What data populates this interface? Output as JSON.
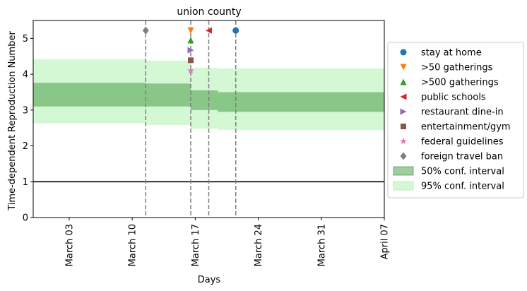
{
  "chart_data": {
    "type": "line",
    "title": "union county",
    "xlabel": "Days",
    "ylabel": "Time-dependent Reproduction Number",
    "x_range": [
      "2020-02-28",
      "2020-04-07"
    ],
    "ylim": [
      0,
      5.5
    ],
    "x_ticks": [
      {
        "date": "2020-03-03",
        "label": "March 03"
      },
      {
        "date": "2020-03-10",
        "label": "March 10"
      },
      {
        "date": "2020-03-17",
        "label": "March 17"
      },
      {
        "date": "2020-03-24",
        "label": "March 24"
      },
      {
        "date": "2020-03-31",
        "label": "March 31"
      },
      {
        "date": "2020-04-07",
        "label": "April 07"
      }
    ],
    "y_ticks": [
      0,
      1,
      2,
      3,
      4,
      5
    ],
    "grid": false,
    "reference_line": {
      "y": 1,
      "color": "#000000"
    },
    "bands": [
      {
        "name": "95% conf. interval",
        "color": "#90ee90",
        "segments": [
          {
            "x_start": "2020-02-28",
            "x_end": "2020-03-11.5",
            "low": 2.63,
            "high": 4.42
          },
          {
            "x_start": "2020-03-11.5",
            "x_end": "2020-03-16.5",
            "low": 2.58,
            "high": 4.38
          },
          {
            "x_start": "2020-03-16.5",
            "x_end": "2020-03-19.5",
            "low": 2.48,
            "high": 4.18
          },
          {
            "x_start": "2020-03-19.5",
            "x_end": "2020-04-07",
            "low": 2.44,
            "high": 4.16
          }
        ]
      },
      {
        "name": "50% conf. interval",
        "color": "#2e8b2e",
        "segments": [
          {
            "x_start": "2020-02-28",
            "x_end": "2020-03-11.5",
            "low": 3.1,
            "high": 3.76
          },
          {
            "x_start": "2020-03-11.5",
            "x_end": "2020-03-16.5",
            "low": 3.1,
            "high": 3.74
          },
          {
            "x_start": "2020-03-16.5",
            "x_end": "2020-03-19.5",
            "low": 3.0,
            "high": 3.55
          },
          {
            "x_start": "2020-03-19.5",
            "x_end": "2020-04-07",
            "low": 2.95,
            "high": 3.5
          }
        ]
      }
    ],
    "interventions": [
      {
        "name": "stay at home",
        "date": "2020-03-21.5",
        "y": 5.22,
        "marker": "circle",
        "color": "#1f77b4"
      },
      {
        "name": ">50 gatherings",
        "date": "2020-03-16.5",
        "y": 5.22,
        "marker": "triangle-down",
        "color": "#ff7f0e"
      },
      {
        "name": ">500 gatherings",
        "date": "2020-03-16.5",
        "y": 4.95,
        "marker": "triangle-up",
        "color": "#2ca02c"
      },
      {
        "name": "public schools",
        "date": "2020-03-18.5",
        "y": 5.22,
        "marker": "triangle-left",
        "color": "#d62728"
      },
      {
        "name": "restaurant dine-in",
        "date": "2020-03-16.5",
        "y": 4.67,
        "marker": "triangle-right",
        "color": "#9467bd"
      },
      {
        "name": "entertainment/gym",
        "date": "2020-03-16.5",
        "y": 4.39,
        "marker": "square",
        "color": "#8c564b"
      },
      {
        "name": "federal guidelines",
        "date": "2020-03-16.5",
        "y": 4.1,
        "marker": "star",
        "color": "#e377c2"
      },
      {
        "name": "foreign travel ban",
        "date": "2020-03-11.5",
        "y": 5.22,
        "marker": "diamond",
        "color": "#7f7f7f"
      }
    ],
    "legend_placement": "right",
    "legend": [
      {
        "label": "stay at home",
        "marker": "circle",
        "color": "#1f77b4"
      },
      {
        "label": ">50 gatherings",
        "marker": "triangle-down",
        "color": "#ff7f0e"
      },
      {
        "label": ">500 gatherings",
        "marker": "triangle-up",
        "color": "#2ca02c"
      },
      {
        "label": "public schools",
        "marker": "triangle-left",
        "color": "#d62728"
      },
      {
        "label": "restaurant dine-in",
        "marker": "triangle-right",
        "color": "#9467bd"
      },
      {
        "label": "entertainment/gym",
        "marker": "square",
        "color": "#8c564b"
      },
      {
        "label": "federal guidelines",
        "marker": "star",
        "color": "#e377c2"
      },
      {
        "label": "foreign travel ban",
        "marker": "diamond",
        "color": "#7f7f7f"
      },
      {
        "label": "50% conf. interval",
        "marker": "patch",
        "color": "#2e8b2e"
      },
      {
        "label": "95% conf. interval",
        "marker": "patch",
        "color": "#90ee90"
      }
    ]
  }
}
